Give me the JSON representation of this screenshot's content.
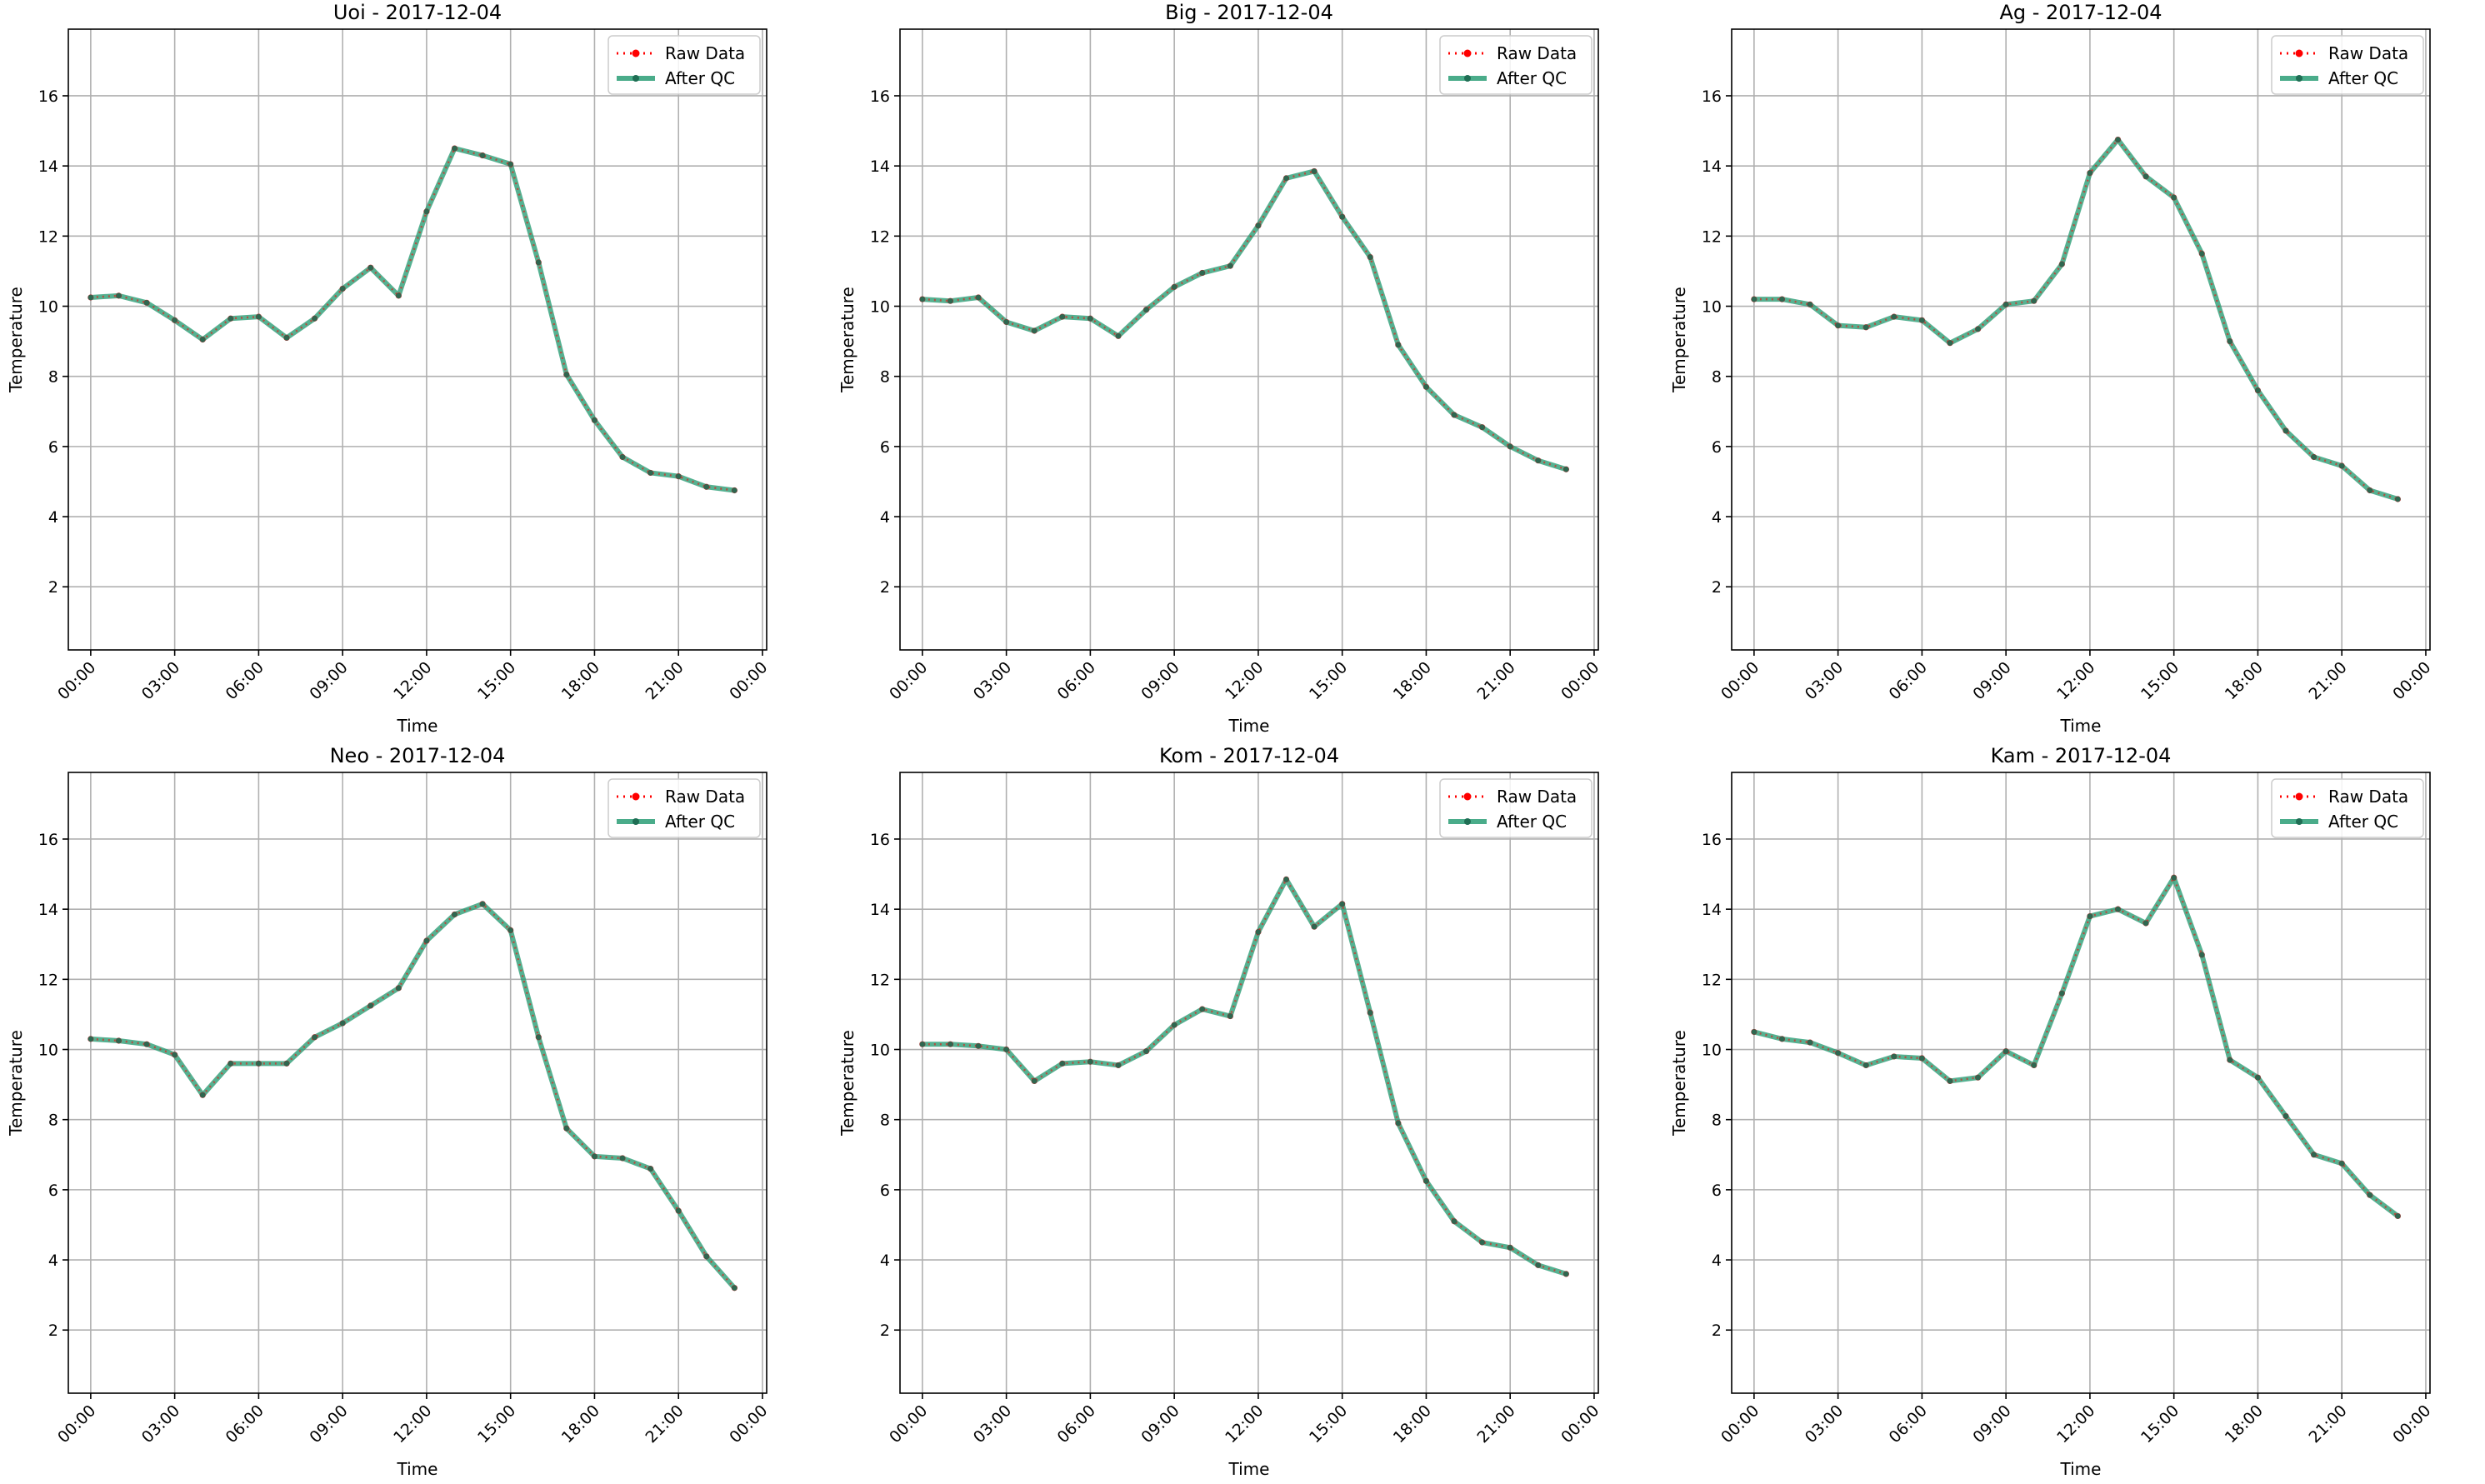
{
  "chart_data": [
    {
      "type": "line",
      "title": "Uoi - 2017-12-04",
      "xlabel": "Time",
      "ylabel": "Temperature",
      "x": [
        "00:00",
        "01:00",
        "02:00",
        "03:00",
        "04:00",
        "05:00",
        "06:00",
        "07:00",
        "08:00",
        "09:00",
        "10:00",
        "11:00",
        "12:00",
        "13:00",
        "14:00",
        "15:00",
        "16:00",
        "17:00",
        "18:00",
        "19:00",
        "20:00",
        "21:00",
        "22:00",
        "23:00"
      ],
      "xticks": [
        "00:00",
        "03:00",
        "06:00",
        "09:00",
        "12:00",
        "15:00",
        "18:00",
        "21:00",
        "00:00"
      ],
      "xlim": [
        "00:00",
        "24:00"
      ],
      "yticks": [
        2,
        4,
        6,
        8,
        10,
        12,
        14,
        16
      ],
      "ylim": [
        0.2,
        17.9
      ],
      "grid": true,
      "legend": "top-right",
      "series": [
        {
          "name": "Raw Data",
          "color": "#ff0000",
          "style": "dotted-with-markers",
          "values": [
            10.25,
            10.3,
            10.1,
            9.6,
            9.05,
            9.65,
            9.7,
            9.1,
            9.65,
            10.5,
            11.1,
            10.3,
            12.7,
            14.5,
            14.3,
            14.05,
            11.25,
            8.05,
            6.75,
            5.7,
            5.25,
            5.15,
            4.85,
            4.75
          ]
        },
        {
          "name": "After QC",
          "color": "#2a9d76",
          "style": "solid-with-markers",
          "values": [
            10.25,
            10.3,
            10.1,
            9.6,
            9.05,
            9.65,
            9.7,
            9.1,
            9.65,
            10.5,
            11.1,
            10.3,
            12.7,
            14.5,
            14.3,
            14.05,
            11.25,
            8.05,
            6.75,
            5.7,
            5.25,
            5.15,
            4.85,
            4.75
          ]
        }
      ]
    },
    {
      "type": "line",
      "title": "Big - 2017-12-04",
      "xlabel": "Time",
      "ylabel": "Temperature",
      "x": [
        "00:00",
        "01:00",
        "02:00",
        "03:00",
        "04:00",
        "05:00",
        "06:00",
        "07:00",
        "08:00",
        "09:00",
        "10:00",
        "11:00",
        "12:00",
        "13:00",
        "14:00",
        "15:00",
        "16:00",
        "17:00",
        "18:00",
        "19:00",
        "20:00",
        "21:00",
        "22:00",
        "23:00"
      ],
      "xticks": [
        "00:00",
        "03:00",
        "06:00",
        "09:00",
        "12:00",
        "15:00",
        "18:00",
        "21:00",
        "00:00"
      ],
      "xlim": [
        "00:00",
        "24:00"
      ],
      "yticks": [
        2,
        4,
        6,
        8,
        10,
        12,
        14,
        16
      ],
      "ylim": [
        0.2,
        17.9
      ],
      "grid": true,
      "legend": "top-right",
      "series": [
        {
          "name": "Raw Data",
          "color": "#ff0000",
          "style": "dotted-with-markers",
          "values": [
            10.2,
            10.15,
            10.25,
            9.55,
            9.3,
            9.7,
            9.65,
            9.15,
            9.9,
            10.55,
            10.95,
            11.15,
            12.3,
            13.65,
            13.85,
            12.55,
            11.4,
            8.9,
            7.7,
            6.9,
            6.55,
            6.0,
            5.6,
            5.35
          ]
        },
        {
          "name": "After QC",
          "color": "#2a9d76",
          "style": "solid-with-markers",
          "values": [
            10.2,
            10.15,
            10.25,
            9.55,
            9.3,
            9.7,
            9.65,
            9.15,
            9.9,
            10.55,
            10.95,
            11.15,
            12.3,
            13.65,
            13.85,
            12.55,
            11.4,
            8.9,
            7.7,
            6.9,
            6.55,
            6.0,
            5.6,
            5.35
          ]
        }
      ]
    },
    {
      "type": "line",
      "title": "Ag - 2017-12-04",
      "xlabel": "Time",
      "ylabel": "Temperature",
      "x": [
        "00:00",
        "01:00",
        "02:00",
        "03:00",
        "04:00",
        "05:00",
        "06:00",
        "07:00",
        "08:00",
        "09:00",
        "10:00",
        "11:00",
        "12:00",
        "13:00",
        "14:00",
        "15:00",
        "16:00",
        "17:00",
        "18:00",
        "19:00",
        "20:00",
        "21:00",
        "22:00",
        "23:00"
      ],
      "xticks": [
        "00:00",
        "03:00",
        "06:00",
        "09:00",
        "12:00",
        "15:00",
        "18:00",
        "21:00",
        "00:00"
      ],
      "xlim": [
        "00:00",
        "24:00"
      ],
      "yticks": [
        2,
        4,
        6,
        8,
        10,
        12,
        14,
        16
      ],
      "ylim": [
        0.2,
        17.9
      ],
      "grid": true,
      "legend": "top-right",
      "series": [
        {
          "name": "Raw Data",
          "color": "#ff0000",
          "style": "dotted-with-markers",
          "values": [
            10.2,
            10.2,
            10.05,
            9.45,
            9.4,
            9.7,
            9.6,
            8.95,
            9.35,
            10.05,
            10.15,
            11.2,
            13.8,
            14.75,
            13.7,
            13.1,
            11.5,
            9.0,
            7.6,
            6.45,
            5.7,
            5.45,
            4.75,
            4.5
          ]
        },
        {
          "name": "After QC",
          "color": "#2a9d76",
          "style": "solid-with-markers",
          "values": [
            10.2,
            10.2,
            10.05,
            9.45,
            9.4,
            9.7,
            9.6,
            8.95,
            9.35,
            10.05,
            10.15,
            11.2,
            13.8,
            14.75,
            13.7,
            13.1,
            11.5,
            9.0,
            7.6,
            6.45,
            5.7,
            5.45,
            4.75,
            4.5
          ]
        }
      ]
    },
    {
      "type": "line",
      "title": "Neo - 2017-12-04",
      "xlabel": "Time",
      "ylabel": "Temperature",
      "x": [
        "00:00",
        "01:00",
        "02:00",
        "03:00",
        "04:00",
        "05:00",
        "06:00",
        "07:00",
        "08:00",
        "09:00",
        "10:00",
        "11:00",
        "12:00",
        "13:00",
        "14:00",
        "15:00",
        "16:00",
        "17:00",
        "18:00",
        "19:00",
        "20:00",
        "21:00",
        "22:00",
        "23:00"
      ],
      "xticks": [
        "00:00",
        "03:00",
        "06:00",
        "09:00",
        "12:00",
        "15:00",
        "18:00",
        "21:00",
        "00:00"
      ],
      "xlim": [
        "00:00",
        "24:00"
      ],
      "yticks": [
        2,
        4,
        6,
        8,
        10,
        12,
        14,
        16
      ],
      "ylim": [
        0.2,
        17.9
      ],
      "grid": true,
      "legend": "top-right",
      "series": [
        {
          "name": "Raw Data",
          "color": "#ff0000",
          "style": "dotted-with-markers",
          "values": [
            10.3,
            10.25,
            10.15,
            9.85,
            8.7,
            9.6,
            9.6,
            9.6,
            10.35,
            10.75,
            11.25,
            11.75,
            13.1,
            13.85,
            14.15,
            13.4,
            10.35,
            7.75,
            6.95,
            6.9,
            6.6,
            5.4,
            4.1,
            3.2
          ]
        },
        {
          "name": "After QC",
          "color": "#2a9d76",
          "style": "solid-with-markers",
          "values": [
            10.3,
            10.25,
            10.15,
            9.85,
            8.7,
            9.6,
            9.6,
            9.6,
            10.35,
            10.75,
            11.25,
            11.75,
            13.1,
            13.85,
            14.15,
            13.4,
            10.35,
            7.75,
            6.95,
            6.9,
            6.6,
            5.4,
            4.1,
            3.2
          ]
        }
      ]
    },
    {
      "type": "line",
      "title": "Kom - 2017-12-04",
      "xlabel": "Time",
      "ylabel": "Temperature",
      "x": [
        "00:00",
        "01:00",
        "02:00",
        "03:00",
        "04:00",
        "05:00",
        "06:00",
        "07:00",
        "08:00",
        "09:00",
        "10:00",
        "11:00",
        "12:00",
        "13:00",
        "14:00",
        "15:00",
        "16:00",
        "17:00",
        "18:00",
        "19:00",
        "20:00",
        "21:00",
        "22:00",
        "23:00"
      ],
      "xticks": [
        "00:00",
        "03:00",
        "06:00",
        "09:00",
        "12:00",
        "15:00",
        "18:00",
        "21:00",
        "00:00"
      ],
      "xlim": [
        "00:00",
        "24:00"
      ],
      "yticks": [
        2,
        4,
        6,
        8,
        10,
        12,
        14,
        16
      ],
      "ylim": [
        0.2,
        17.9
      ],
      "grid": true,
      "legend": "top-right",
      "series": [
        {
          "name": "Raw Data",
          "color": "#ff0000",
          "style": "dotted-with-markers",
          "values": [
            10.15,
            10.15,
            10.1,
            10.0,
            9.1,
            9.6,
            9.65,
            9.55,
            9.95,
            10.7,
            11.15,
            10.95,
            13.35,
            14.85,
            13.5,
            14.15,
            11.05,
            7.9,
            6.25,
            5.1,
            4.5,
            4.35,
            3.85,
            3.6
          ]
        },
        {
          "name": "After QC",
          "color": "#2a9d76",
          "style": "solid-with-markers",
          "values": [
            10.15,
            10.15,
            10.1,
            10.0,
            9.1,
            9.6,
            9.65,
            9.55,
            9.95,
            10.7,
            11.15,
            10.95,
            13.35,
            14.85,
            13.5,
            14.15,
            11.05,
            7.9,
            6.25,
            5.1,
            4.5,
            4.35,
            3.85,
            3.6
          ]
        }
      ]
    },
    {
      "type": "line",
      "title": "Kam - 2017-12-04",
      "xlabel": "Time",
      "ylabel": "Temperature",
      "x": [
        "00:00",
        "01:00",
        "02:00",
        "03:00",
        "04:00",
        "05:00",
        "06:00",
        "07:00",
        "08:00",
        "09:00",
        "10:00",
        "11:00",
        "12:00",
        "13:00",
        "14:00",
        "15:00",
        "16:00",
        "17:00",
        "18:00",
        "19:00",
        "20:00",
        "21:00",
        "22:00",
        "23:00"
      ],
      "xticks": [
        "00:00",
        "03:00",
        "06:00",
        "09:00",
        "12:00",
        "15:00",
        "18:00",
        "21:00",
        "00:00"
      ],
      "xlim": [
        "00:00",
        "24:00"
      ],
      "yticks": [
        2,
        4,
        6,
        8,
        10,
        12,
        14,
        16
      ],
      "ylim": [
        0.2,
        17.9
      ],
      "grid": true,
      "legend": "top-right",
      "series": [
        {
          "name": "Raw Data",
          "color": "#ff0000",
          "style": "dotted-with-markers",
          "values": [
            10.5,
            10.3,
            10.2,
            9.9,
            9.55,
            9.8,
            9.75,
            9.1,
            9.2,
            9.95,
            9.55,
            11.6,
            13.8,
            14.0,
            13.6,
            14.9,
            12.7,
            9.7,
            9.2,
            8.1,
            7.0,
            6.75,
            5.85,
            5.25
          ]
        },
        {
          "name": "After QC",
          "color": "#2a9d76",
          "style": "solid-with-markers",
          "values": [
            10.5,
            10.3,
            10.2,
            9.9,
            9.55,
            9.8,
            9.75,
            9.1,
            9.2,
            9.95,
            9.55,
            11.6,
            13.8,
            14.0,
            13.6,
            14.9,
            12.7,
            9.7,
            9.2,
            8.1,
            7.0,
            6.75,
            5.85,
            5.25
          ]
        }
      ]
    }
  ]
}
